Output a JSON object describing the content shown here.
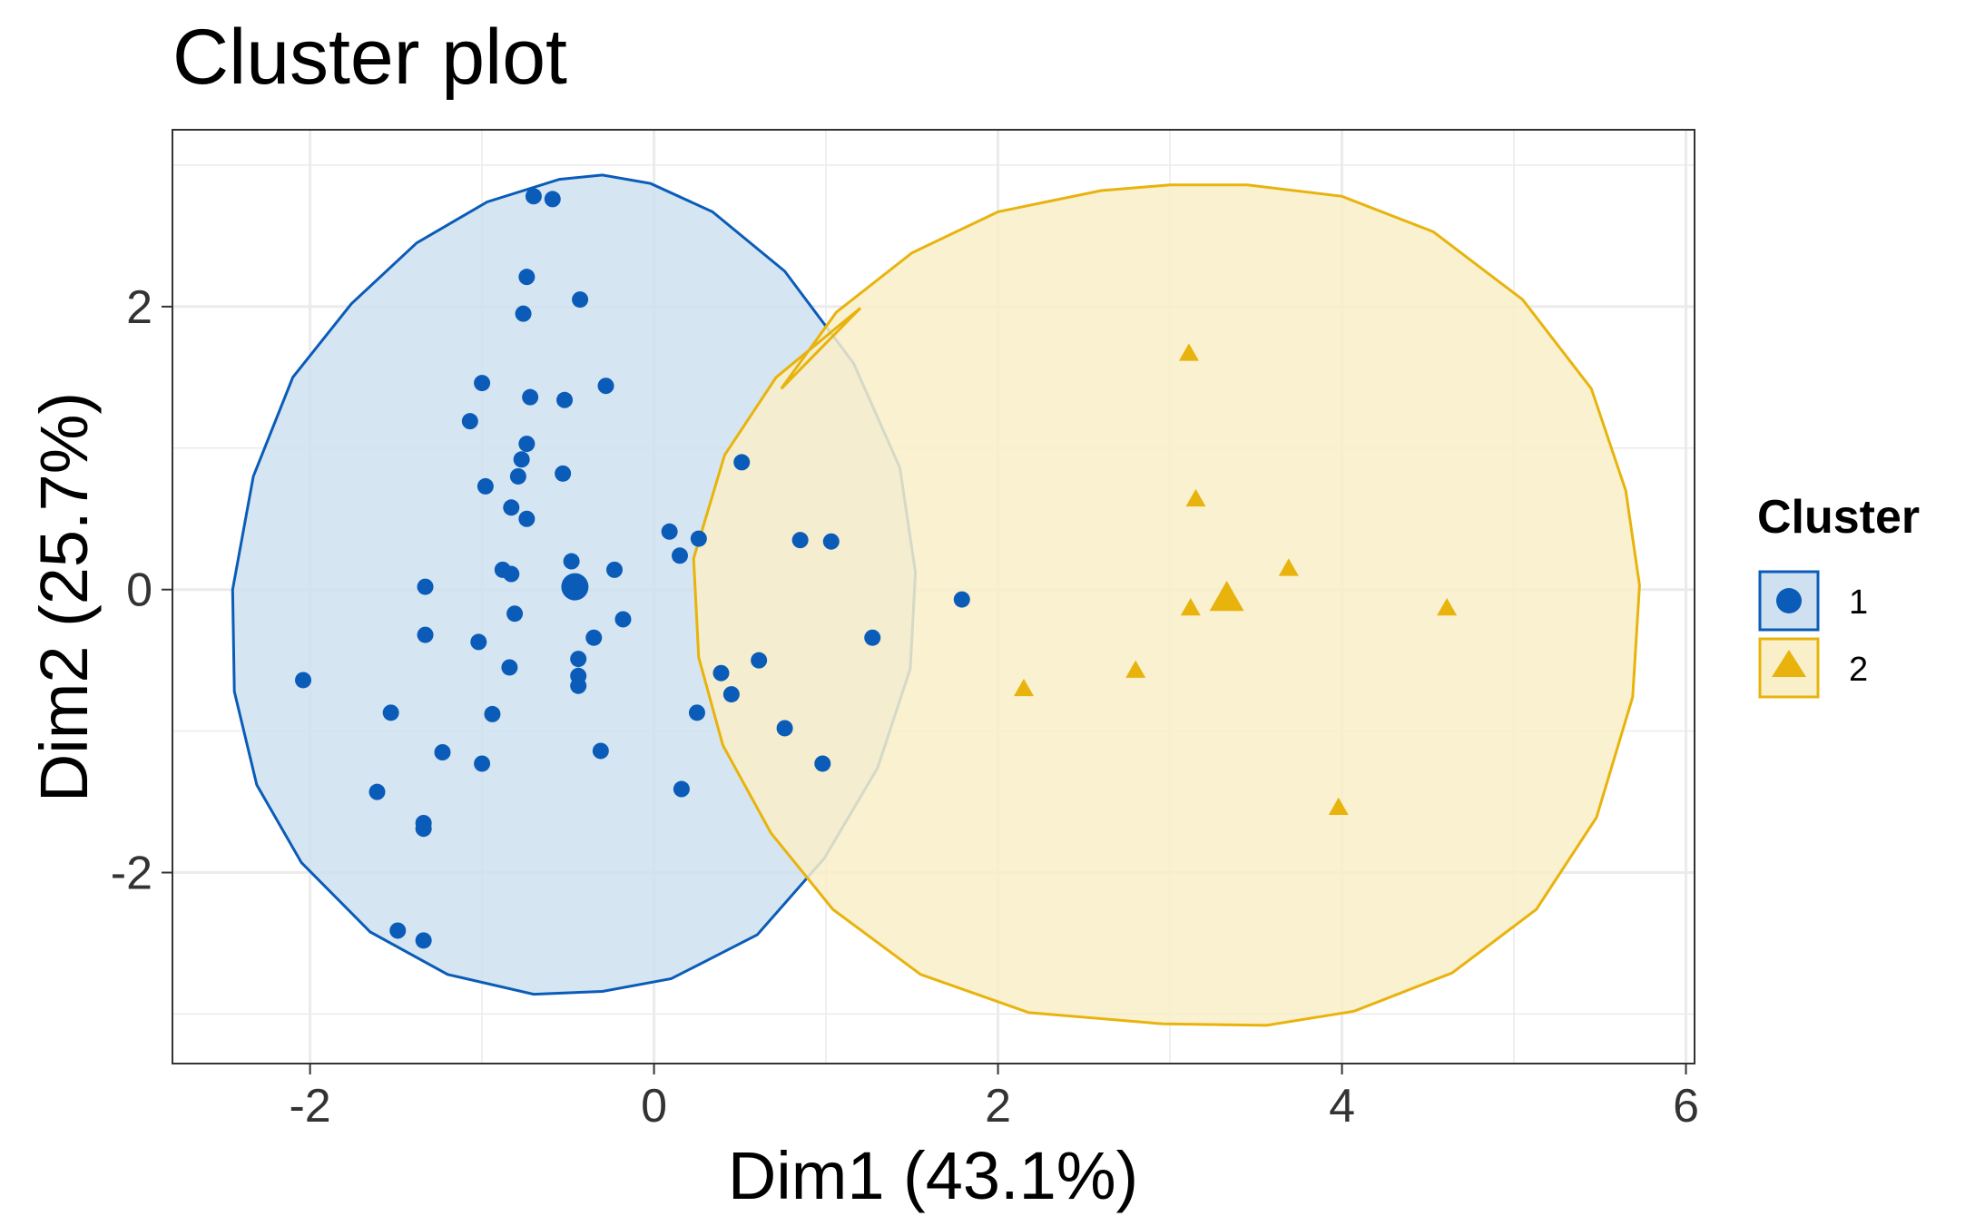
{
  "chart_data": {
    "type": "scatter",
    "title": "Cluster plot",
    "xlabel": "Dim1 (43.1%)",
    "ylabel": "Dim2 (25.7%)",
    "xlim": [
      -2.8,
      6.05
    ],
    "ylim": [
      -3.35,
      3.25
    ],
    "x_ticks": [
      -2,
      0,
      2,
      4,
      6
    ],
    "x_tick_labels": [
      "-2",
      "0",
      "2",
      "4",
      "6"
    ],
    "y_ticks": [
      -2,
      0,
      2
    ],
    "y_tick_labels": [
      "-2",
      "0",
      "2"
    ],
    "grid": true,
    "legend": {
      "title": "Cluster",
      "position": "right",
      "entries": [
        {
          "label": "1",
          "shape": "circle",
          "color": "#0a5cb8"
        },
        {
          "label": "2",
          "shape": "triangle",
          "color": "#e8b30c"
        }
      ]
    },
    "series": [
      {
        "name": "1",
        "shape": "circle",
        "color": "#0a5cb8",
        "fill": "#cfe0f0",
        "centroid": [
          -0.46,
          0.02
        ],
        "ellipse": [
          [
            -0.3,
            2.93
          ],
          [
            -0.55,
            2.9
          ],
          [
            -0.97,
            2.74
          ],
          [
            -1.38,
            2.45
          ],
          [
            -1.76,
            2.02
          ],
          [
            -2.1,
            1.5
          ],
          [
            -2.33,
            0.8
          ],
          [
            -2.45,
            0.0
          ],
          [
            -2.44,
            -0.72
          ],
          [
            -2.31,
            -1.38
          ],
          [
            -2.05,
            -1.93
          ],
          [
            -1.65,
            -2.42
          ],
          [
            -1.2,
            -2.72
          ],
          [
            -0.7,
            -2.86
          ],
          [
            -0.3,
            -2.84
          ],
          [
            0.1,
            -2.75
          ],
          [
            0.6,
            -2.44
          ],
          [
            0.99,
            -1.9
          ],
          [
            1.3,
            -1.26
          ],
          [
            1.49,
            -0.56
          ],
          [
            1.52,
            0.12
          ],
          [
            1.43,
            0.86
          ],
          [
            1.16,
            1.6
          ],
          [
            0.76,
            2.25
          ],
          [
            0.34,
            2.67
          ],
          [
            -0.02,
            2.87
          ]
        ],
        "points": [
          [
            -0.7,
            2.78
          ],
          [
            -0.59,
            2.76
          ],
          [
            -0.74,
            2.21
          ],
          [
            -0.43,
            2.05
          ],
          [
            -0.76,
            1.95
          ],
          [
            -0.28,
            1.44
          ],
          [
            -1.0,
            1.46
          ],
          [
            -0.72,
            1.36
          ],
          [
            -0.52,
            1.34
          ],
          [
            -1.07,
            1.19
          ],
          [
            -0.74,
            1.03
          ],
          [
            -0.77,
            0.92
          ],
          [
            0.51,
            0.9
          ],
          [
            -0.53,
            0.82
          ],
          [
            -0.79,
            0.8
          ],
          [
            -0.98,
            0.73
          ],
          [
            -0.83,
            0.58
          ],
          [
            -0.74,
            0.5
          ],
          [
            0.09,
            0.41
          ],
          [
            0.26,
            0.36
          ],
          [
            0.85,
            0.35
          ],
          [
            1.03,
            0.34
          ],
          [
            0.15,
            0.24
          ],
          [
            -0.48,
            0.2
          ],
          [
            -0.23,
            0.14
          ],
          [
            -0.88,
            0.14
          ],
          [
            -0.83,
            0.11
          ],
          [
            -1.33,
            0.02
          ],
          [
            -0.81,
            -0.17
          ],
          [
            -0.18,
            -0.21
          ],
          [
            -1.33,
            -0.32
          ],
          [
            -0.35,
            -0.34
          ],
          [
            -1.02,
            -0.37
          ],
          [
            1.27,
            -0.34
          ],
          [
            -0.44,
            -0.49
          ],
          [
            0.61,
            -0.5
          ],
          [
            -0.84,
            -0.55
          ],
          [
            0.39,
            -0.59
          ],
          [
            -0.44,
            -0.61
          ],
          [
            -0.44,
            -0.68
          ],
          [
            0.45,
            -0.74
          ],
          [
            -1.53,
            -0.87
          ],
          [
            -0.94,
            -0.88
          ],
          [
            0.25,
            -0.87
          ],
          [
            0.76,
            -0.98
          ],
          [
            -1.23,
            -1.15
          ],
          [
            -0.31,
            -1.14
          ],
          [
            -1.0,
            -1.23
          ],
          [
            0.98,
            -1.23
          ],
          [
            0.16,
            -1.41
          ],
          [
            -1.61,
            -1.43
          ],
          [
            -1.34,
            -1.65
          ],
          [
            -1.34,
            -1.69
          ],
          [
            -1.49,
            -2.41
          ],
          [
            -1.34,
            -2.48
          ],
          [
            -2.04,
            -0.64
          ],
          [
            1.79,
            -0.07
          ]
        ]
      },
      {
        "name": "2",
        "shape": "triangle",
        "color": "#e8b30c",
        "fill": "#f9efc9",
        "centroid": [
          3.33,
          -0.06
        ],
        "ellipse": [
          [
            3.0,
            2.86
          ],
          [
            2.6,
            2.82
          ],
          [
            2.0,
            2.67
          ],
          [
            1.5,
            2.38
          ],
          [
            1.06,
            1.96
          ],
          [
            0.74,
            1.42
          ],
          [
            1.2,
            1.99
          ],
          [
            0.71,
            1.5
          ],
          [
            0.41,
            0.95
          ],
          [
            0.23,
            0.22
          ],
          [
            0.26,
            -0.48
          ],
          [
            0.4,
            -1.1
          ],
          [
            0.68,
            -1.72
          ],
          [
            1.04,
            -2.26
          ],
          [
            1.55,
            -2.72
          ],
          [
            2.18,
            -2.99
          ],
          [
            2.96,
            -3.07
          ],
          [
            3.56,
            -3.08
          ],
          [
            4.07,
            -2.98
          ],
          [
            4.64,
            -2.71
          ],
          [
            5.13,
            -2.26
          ],
          [
            5.48,
            -1.61
          ],
          [
            5.69,
            -0.76
          ],
          [
            5.73,
            0.03
          ],
          [
            5.65,
            0.7
          ],
          [
            5.45,
            1.42
          ],
          [
            5.05,
            2.05
          ],
          [
            4.53,
            2.53
          ],
          [
            4.0,
            2.78
          ],
          [
            3.45,
            2.86
          ]
        ],
        "points": [
          [
            3.11,
            1.67
          ],
          [
            3.15,
            0.64
          ],
          [
            3.69,
            0.15
          ],
          [
            3.12,
            -0.13
          ],
          [
            4.61,
            -0.13
          ],
          [
            2.8,
            -0.57
          ],
          [
            2.15,
            -0.7
          ],
          [
            3.98,
            -1.54
          ]
        ]
      }
    ]
  }
}
